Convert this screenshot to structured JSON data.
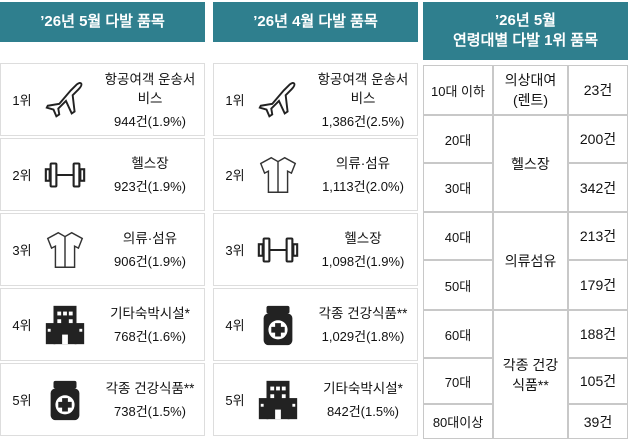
{
  "panels": [
    {
      "title": "’26년 5월 다발 품목",
      "rows": [
        {
          "rank": "1위",
          "item": "항공여객 운송서비스",
          "count": "944건(1.9%)"
        },
        {
          "rank": "2위",
          "item": "헬스장",
          "count": "923건(1.9%)"
        },
        {
          "rank": "3위",
          "item": "의류·섬유",
          "count": "906건(1.9%)"
        },
        {
          "rank": "4위",
          "item": "기타숙박시설*",
          "count": "768건(1.6%)"
        },
        {
          "rank": "5위",
          "item": "각종 건강식품**",
          "count": "738건(1.5%)"
        }
      ]
    },
    {
      "title": "’26년 4월 다발 품목",
      "rows": [
        {
          "rank": "1위",
          "item": "항공여객 운송서비스",
          "count": "1,386건(2.5%)"
        },
        {
          "rank": "2위",
          "item": "의류·섬유",
          "count": "1,113건(2.0%)"
        },
        {
          "rank": "3위",
          "item": "헬스장",
          "count": "1,098건(1.9%)"
        },
        {
          "rank": "4위",
          "item": "각종 건강식품**",
          "count": "1,029건(1.8%)"
        },
        {
          "rank": "5위",
          "item": "기타숙박시설*",
          "count": "842건(1.5%)"
        }
      ]
    }
  ],
  "age_table": {
    "title": [
      "’26년 5월",
      "연령대별 다발 1위 품목"
    ],
    "ages": [
      "10대 이하",
      "20대",
      "30대",
      "40대",
      "50대",
      "60대",
      "70대",
      "80대이상"
    ],
    "counts": [
      "23건",
      "200건",
      "342건",
      "213건",
      "179건",
      "188건",
      "105건",
      "39건"
    ],
    "items": [
      "의상대여(렌트)",
      "헬스장",
      "의류섬유",
      "각종 건강식품**"
    ]
  }
}
